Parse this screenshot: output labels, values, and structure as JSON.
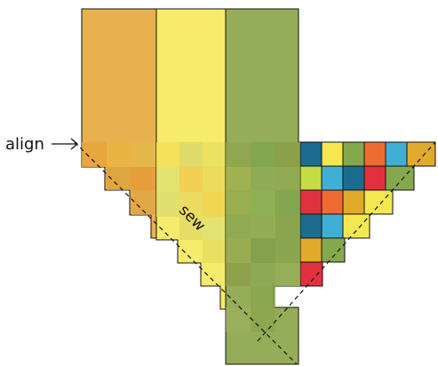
{
  "labels": {
    "align": "align",
    "sew": "sew"
  },
  "colors": {
    "orange_strip": "#e6b14e",
    "yellow_strip": "#f6eb6a",
    "green_strip": "#95ad58",
    "outline": "#111111",
    "dashed_line": "#111111",
    "quilt_palette": [
      "#1c6c8f",
      "#f4e84e",
      "#84a94c",
      "#ee6b33",
      "#3fb0d3",
      "#e1aa2b",
      "#e1313f",
      "#c7dd45"
    ]
  },
  "icons": {
    "align_arrow": "right-arrow-icon"
  }
}
